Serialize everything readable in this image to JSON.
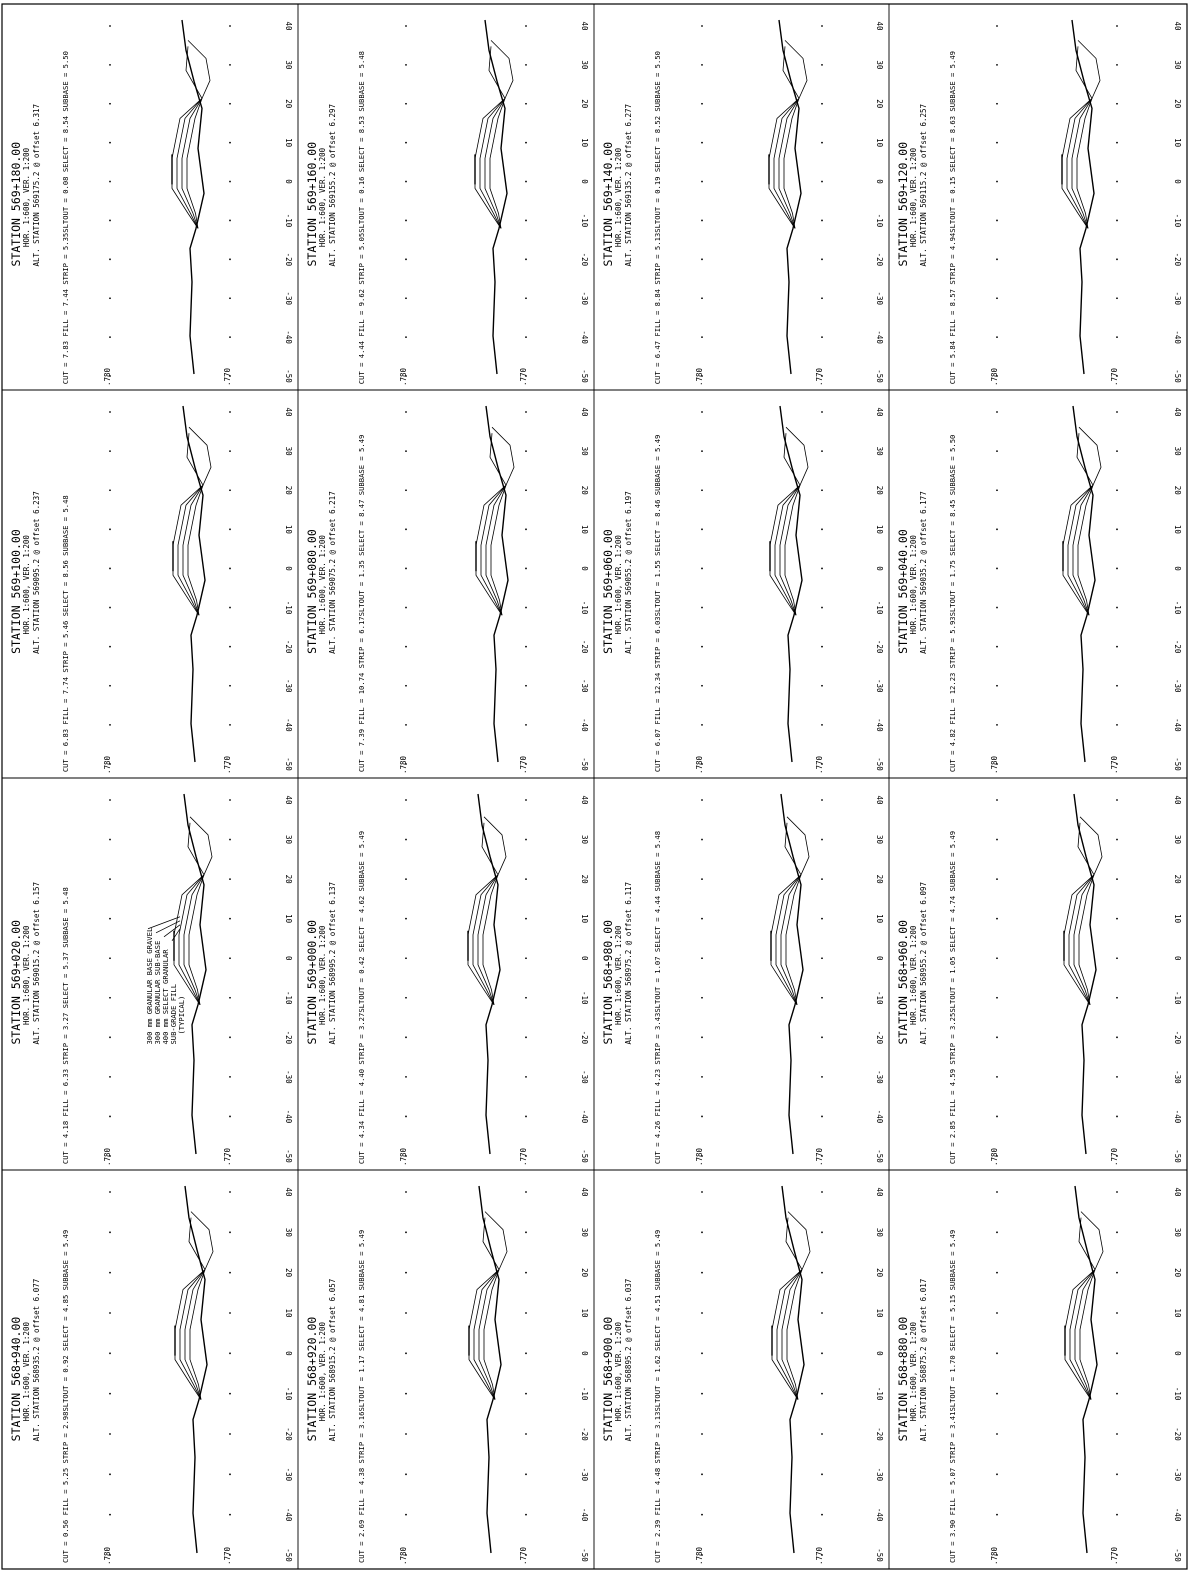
{
  "sheet": {
    "columns": 4,
    "rows": 4,
    "elevation_labels": [
      ".780",
      ".770"
    ],
    "offset_labels": [
      "40",
      "30",
      "20",
      "10",
      "0",
      "-10",
      "-20",
      "-30",
      "-40",
      "-50"
    ]
  },
  "sections": [
    {
      "station": "STATION 569+180.00",
      "scale": "HOR. 1:600, VER. 1:200",
      "alt": "ALT. STATION 569175.2 @ offset 6.317",
      "quantities": "CUT = 7.83  FILL = 7.44  STRIP =   5.35SLTOUT =   0.08  SELECT =   8.54  SUBBASE =  5.50"
    },
    {
      "station": "STATION 569+160.00",
      "scale": "HOR. 1:600, VER. 1:200",
      "alt": "ALT. STATION 569155.2 @ offset 6.297",
      "quantities": "CUT = 4.44  FILL = 9.62  STRIP =   5.05SLTOUT =   0.16  SELECT =   8.53  SUBBASE =  5.48"
    },
    {
      "station": "STATION 569+140.00",
      "scale": "HOR. 1:600, VER. 1:200",
      "alt": "ALT. STATION 569135.2 @ offset 6.277",
      "quantities": "CUT = 6.47  FILL = 8.84  STRIP =   5.13SLTOUT =   0.19  SELECT =   8.52  SUBBASE =  5.50"
    },
    {
      "station": "STATION 569+120.00",
      "scale": "HOR. 1:600, VER. 1:200",
      "alt": "ALT. STATION 569115.2 @ offset 6.257",
      "quantities": "CUT = 5.84  FILL = 8.57  STRIP =   4.94SLTOUT =   0.15  SELECT =   8.63  SUBBASE =  5.49"
    },
    {
      "station": "STATION 569+100.00",
      "scale": "HOR. 1:600, VER. 1:200",
      "alt": "ALT. STATION 569095.2 @ offset 6.237",
      "quantities": "CUT = 6.83  FILL = 7.74  STRIP =   5.46  SELECT =   8.56  SUBBASE =  5.48"
    },
    {
      "station": "STATION 569+080.00",
      "scale": "HOR. 1:600, VER. 1:200",
      "alt": "ALT. STATION 569075.2 @ offset 6.217",
      "quantities": "CUT = 7.39  FILL = 10.74  STRIP =   6.17SLTOUT =   1.35  SELECT =   8.47  SUBBASE =  5.49"
    },
    {
      "station": "STATION 569+060.00",
      "scale": "HOR. 1:600, VER. 1:200",
      "alt": "ALT. STATION 569055.2 @ offset 6.197",
      "quantities": "CUT = 6.07  FILL = 12.34  STRIP =   6.03SLTOUT =   1.55  SELECT =   8.46  SUBBASE =  5.49"
    },
    {
      "station": "STATION 569+040.00",
      "scale": "HOR. 1:600, VER. 1:200",
      "alt": "ALT. STATION 569035.2 @ offset 6.177",
      "quantities": "CUT = 4.82  FILL = 12.23  STRIP =   5.93SLTOUT =   1.75  SELECT =   8.45  SUBBASE =  5.50"
    },
    {
      "station": "STATION 569+020.00",
      "scale": "HOR. 1:600, VER. 1:200",
      "alt": "ALT. STATION 569015.2 @ offset 6.157",
      "quantities": "CUT = 4.18  FILL = 6.33  STRIP =   3.27  SELECT =   5.37  SUBBASE =  5.48"
    },
    {
      "station": "STATION 569+000.00",
      "scale": "HOR. 1:600, VER. 1:200",
      "alt": "ALT. STATION 568995.2 @ offset 6.137",
      "quantities": "CUT = 4.34  FILL = 4.40  STRIP =   3.27SLTOUT =   0.42  SELECT =   4.62  SUBBASE =  5.49"
    },
    {
      "station": "STATION 568+980.00",
      "scale": "HOR. 1:600, VER. 1:200",
      "alt": "ALT. STATION 568975.2 @ offset 6.117",
      "quantities": "CUT = 4.26  FILL = 4.23  STRIP =   3.43SLTOUT =   1.07  SELECT =   4.44  SUBBASE =  5.48"
    },
    {
      "station": "STATION 568+960.00",
      "scale": "HOR. 1:600, VER. 1:200",
      "alt": "ALT. STATION 568955.2 @ offset 6.097",
      "quantities": "CUT = 2.85  FILL = 4.59  STRIP =   3.25SLTOUT =   1.05  SELECT =   4.74  SUBBASE =  5.49"
    },
    {
      "station": "STATION 568+940.00",
      "scale": "HOR. 1:600, VER. 1:200",
      "alt": "ALT. STATION 568935.2 @ offset 6.077",
      "quantities": "CUT = 0.56  FILL = 5.25  STRIP =   2.98SLTOUT =   0.92  SELECT =   4.85  SUBBASE =  5.49"
    },
    {
      "station": "STATION 568+920.00",
      "scale": "HOR. 1:600, VER. 1:200",
      "alt": "ALT. STATION 568915.2 @ offset 6.057",
      "quantities": "CUT = 2.69  FILL = 4.38  STRIP =   3.16SLTOUT =   1.17  SELECT =   4.81  SUBBASE =  5.49"
    },
    {
      "station": "STATION 568+900.00",
      "scale": "HOR. 1:600, VER. 1:200",
      "alt": "ALT. STATION 568895.2 @ offset 6.037",
      "quantities": "CUT = 2.39  FILL = 4.48  STRIP =   3.13SLTOUT =   1.62  SELECT =   4.51  SUBBASE =  5.49"
    },
    {
      "station": "STATION 568+880.00",
      "scale": "HOR. 1:600, VER. 1:200",
      "alt": "ALT. STATION 568875.2 @ offset 6.017",
      "quantities": "CUT = 3.90  FILL = 5.07  STRIP =   3.41SLTOUT =   1.70  SELECT =   5.15  SUBBASE =  5.49"
    }
  ],
  "callout": {
    "lines": [
      "300 mm GRANULAR BASE GRAVEL",
      "300 mm GRANULAR SUB-BASE",
      "400 mm SELECT GRANULAR",
      "SUB-GRADE FILL",
      "(TYPICAL)"
    ]
  }
}
